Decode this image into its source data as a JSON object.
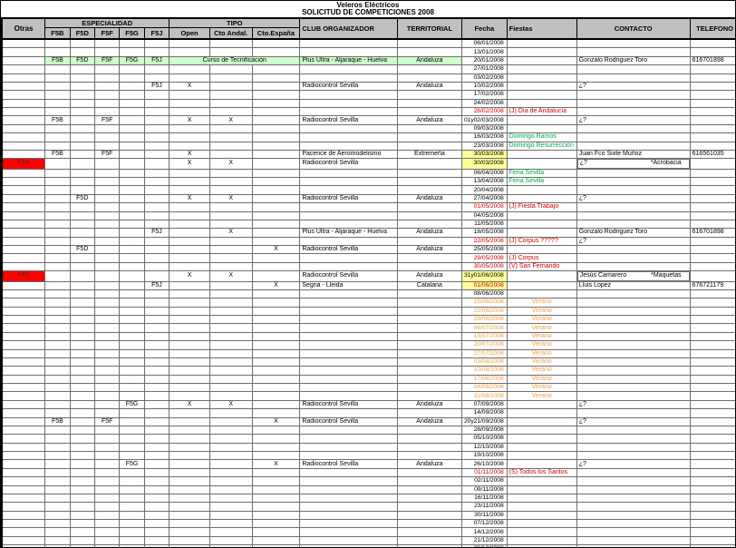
{
  "title": {
    "line1": "Veleros Eléctricos",
    "line2": "SOLICITUD DE COMPETICIONES 2008"
  },
  "colors": {
    "header_gray": "#c0c0c0",
    "highlight_green": "#ccffcc",
    "highlight_yellow": "#ffff99",
    "highlight_red": "#ff0000",
    "text_red": "#cc0000",
    "text_green": "#00a651",
    "text_orange": "#f2a13c",
    "otras_text": "#7f1d1d"
  },
  "header": {
    "otras": "Otras",
    "especialidad_group": "ESPECIALIDAD",
    "tipo_group": "TIPO",
    "especialidades": [
      "F5B",
      "F5D",
      "F5F",
      "F5G",
      "F5J"
    ],
    "tipos": [
      "Open",
      "Cto Andal.",
      "Cto.España"
    ],
    "club": "CLUB ORGANIZADOR",
    "territorial": "TERRITORIAL",
    "fecha": "Fecha",
    "fiestas": "Fiestas",
    "contacto": "CONTACTO",
    "telefono": "TELEFONO"
  },
  "rows": [
    {
      "d": "06/01/2008"
    },
    {
      "d": "13/01/2008"
    },
    {
      "d": "20/01/2008",
      "bg": "green",
      "e": [
        "F5B",
        "F5D",
        "F5F",
        "F5G",
        "F5J"
      ],
      "ts": "Curso de Tecnificación",
      "c": "Plus Ultra -  Aljaraque - Huelva",
      "tr": "Andaluza",
      "co": "Gonzalo Rodriguez Toro",
      "tel": "616701898"
    },
    {
      "d": "27/01/2008"
    },
    {
      "d": "03/02/2008"
    },
    {
      "d": "10/02/2008",
      "e": [
        "F5J"
      ],
      "t": [
        "open"
      ],
      "c": "Radiocontrol Sevilla",
      "tr": "Andaluza",
      "co": "¿?"
    },
    {
      "d": "17/02/2008"
    },
    {
      "d": "24/02/2008"
    },
    {
      "d": "28/02/2008",
      "ds": "red",
      "f": "(J) Día de Andalucía",
      "fs": "red"
    },
    {
      "d": "01y02/03/2008",
      "e": [
        "F5B",
        "F5F"
      ],
      "t": [
        "open",
        "andal"
      ],
      "c": "Radiocontrol Sevilla",
      "tr": "Andaluza",
      "co": "¿?"
    },
    {
      "d": "09/03/2008"
    },
    {
      "d": "16/03/2008",
      "f": "Domingo Ramos",
      "fs": "green"
    },
    {
      "d": "23/03/2008",
      "f": "Domingo Resurrección",
      "fs": "green"
    },
    {
      "d": "30/03/2008",
      "ds": "yellow",
      "e": [
        "F5B",
        "F5F"
      ],
      "t": [
        "open"
      ],
      "c": "Pacence de Aeromodelismo",
      "tr": "Extremeña",
      "co": "Juan Fco Sixte Muñoz",
      "tel": "616561035"
    },
    {
      "d": "30/03/2008",
      "ds": "yellow",
      "o": "F3A",
      "t": [
        "open",
        "andal"
      ],
      "c": "Radiocontrol Sevilla",
      "co": "¿?",
      "cn": "*Acrobacia"
    },
    {
      "d": "06/04/2008",
      "f": "Feria Sevilla",
      "fs": "green"
    },
    {
      "d": "13/04/2008",
      "f": "Feria Sevilla",
      "fs": "green"
    },
    {
      "d": "20/04/2008"
    },
    {
      "d": "27/04/2008",
      "e": [
        "F5D"
      ],
      "t": [
        "open",
        "andal"
      ],
      "c": "Radiocontrol Sevilla",
      "tr": "Andaluza",
      "co": "¿?"
    },
    {
      "d": "01/05/2008",
      "ds": "red",
      "f": "(J) Fiesta Trabajo",
      "fs": "red"
    },
    {
      "d": "04/05/2008"
    },
    {
      "d": "11/05/2008"
    },
    {
      "d": "18/05/2008",
      "e": [
        "F5J"
      ],
      "t": [
        "andal"
      ],
      "c": "Plus Ultra -  Aljaraque - Huelva",
      "tr": "Andaluza",
      "co": "Gonzalo Rodriguez Toro",
      "tel": "616701898"
    },
    {
      "d": "22/05/2008",
      "ds": "red",
      "f": "(J) Corpus ?????",
      "fs": "red",
      "co": "¿?"
    },
    {
      "d": "25/05/2008",
      "e": [
        "F5D"
      ],
      "t": [
        "espana"
      ],
      "c": "Radiocontrol Sevilla",
      "tr": "Andaluza"
    },
    {
      "d": "29/05/2008",
      "ds": "red",
      "f": "(J) Corpus",
      "fs": "red"
    },
    {
      "d": "30/05/2008",
      "ds": "red",
      "f": "(V) San Fernando",
      "fs": "red"
    },
    {
      "d": "31y01/06/2008",
      "ds": "yellow",
      "o": "F4C",
      "t": [
        "open",
        "andal"
      ],
      "c": "Radiocontrol Sevilla",
      "tr": "Andaluza",
      "co": "Jesús Camarero",
      "cn": "*Maquetas"
    },
    {
      "d": "01/06/2008",
      "ds": "yellow-red",
      "e": [
        "F5J"
      ],
      "t": [
        "espana"
      ],
      "c": "Segriá - Lleida",
      "tr": "Catalana",
      "co": "Lluis Lopez",
      "tel": "676721179"
    },
    {
      "d": "08/06/2008"
    },
    {
      "d": "15/06/2008",
      "ds": "orange",
      "f": "Verano",
      "fs": "orange"
    },
    {
      "d": "22/06/2008",
      "ds": "orange",
      "f": "Verano",
      "fs": "orange"
    },
    {
      "d": "29/06/2008",
      "ds": "orange",
      "f": "Verano",
      "fs": "orange"
    },
    {
      "d": "06/07/2008",
      "ds": "orange",
      "f": "Verano",
      "fs": "orange"
    },
    {
      "d": "13/07/2008",
      "ds": "orange",
      "f": "Verano",
      "fs": "orange"
    },
    {
      "d": "20/07/2008",
      "ds": "orange",
      "f": "Verano",
      "fs": "orange"
    },
    {
      "d": "27/07/2008",
      "ds": "orange",
      "f": "Verano",
      "fs": "orange"
    },
    {
      "d": "03/08/2008",
      "ds": "orange",
      "f": "Verano",
      "fs": "orange"
    },
    {
      "d": "10/08/2008",
      "ds": "orange",
      "f": "Verano",
      "fs": "orange"
    },
    {
      "d": "17/08/2008",
      "ds": "orange",
      "f": "Verano",
      "fs": "orange"
    },
    {
      "d": "24/08/2008",
      "ds": "orange",
      "f": "Verano",
      "fs": "orange"
    },
    {
      "d": "31/08/2008",
      "ds": "orange",
      "f": "Verano",
      "fs": "orange"
    },
    {
      "d": "07/09/2008",
      "e": [
        "F5G"
      ],
      "t": [
        "open",
        "andal"
      ],
      "c": "Radiocontrol Sevilla",
      "tr": "Andaluza",
      "co": "¿?"
    },
    {
      "d": "14/09/2008"
    },
    {
      "d": "20y21/09/2008",
      "e": [
        "F5B",
        "F5F"
      ],
      "t": [
        "espana"
      ],
      "c": "Radiocontrol Sevilla",
      "tr": "Andaluza",
      "co": "¿?"
    },
    {
      "d": "28/09/2008"
    },
    {
      "d": "05/10/2008"
    },
    {
      "d": "12/10/2008"
    },
    {
      "d": "19/10/2008"
    },
    {
      "d": "26/10/2008",
      "e": [
        "F5G"
      ],
      "t": [
        "espana"
      ],
      "c": "Radiocontrol Sevilla",
      "tr": "Andaluza",
      "co": "¿?"
    },
    {
      "d": "01/11/2008",
      "ds": "red",
      "f": "(S) Todos los Santos",
      "fs": "red"
    },
    {
      "d": "02/11/2008"
    },
    {
      "d": "09/11/2008"
    },
    {
      "d": "16/11/2008"
    },
    {
      "d": "23/11/2008"
    },
    {
      "d": "30/11/2008"
    },
    {
      "d": "07/12/2008"
    },
    {
      "d": "14/12/2008"
    },
    {
      "d": "21/12/2008"
    },
    {
      "d": "28/12/2008"
    }
  ]
}
